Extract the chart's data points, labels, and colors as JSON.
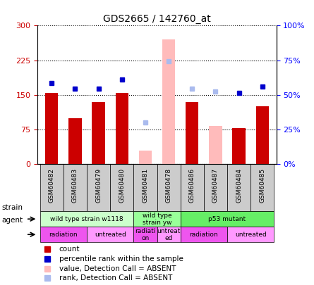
{
  "title": "GDS2665 / 142760_at",
  "samples": [
    "GSM60482",
    "GSM60483",
    "GSM60479",
    "GSM60480",
    "GSM60481",
    "GSM60478",
    "GSM60486",
    "GSM60487",
    "GSM60484",
    "GSM60485"
  ],
  "count_values": [
    155,
    100,
    135,
    155,
    null,
    null,
    135,
    null,
    78,
    125
  ],
  "rank_values": [
    175,
    163,
    163,
    183,
    null,
    null,
    null,
    null,
    155,
    168
  ],
  "absent_bar_values": [
    null,
    null,
    null,
    null,
    30,
    270,
    null,
    82,
    null,
    null
  ],
  "absent_rank_values": [
    null,
    null,
    null,
    null,
    90,
    223,
    163,
    158,
    null,
    null
  ],
  "ylim_left": [
    0,
    300
  ],
  "ylim_right": [
    0,
    100
  ],
  "yticks_left": [
    0,
    75,
    150,
    225,
    300
  ],
  "yticks_right": [
    0,
    25,
    50,
    75,
    100
  ],
  "ytick_labels_right": [
    "0%",
    "25%",
    "50%",
    "75%",
    "100%"
  ],
  "strain_groups": [
    {
      "label": "wild type strain w1118",
      "start": 0,
      "end": 4,
      "color": "#ccffcc"
    },
    {
      "label": "wild type\nstrain yw",
      "start": 4,
      "end": 6,
      "color": "#99ff99"
    },
    {
      "label": "p53 mutant",
      "start": 6,
      "end": 10,
      "color": "#66ee66"
    }
  ],
  "agent_groups": [
    {
      "label": "radiation",
      "start": 0,
      "end": 2,
      "color": "#ee55ee"
    },
    {
      "label": "untreated",
      "start": 2,
      "end": 4,
      "color": "#ff99ff"
    },
    {
      "label": "radiati\non",
      "start": 4,
      "end": 5,
      "color": "#ee55ee"
    },
    {
      "label": "untreat\ned",
      "start": 5,
      "end": 6,
      "color": "#ff99ff"
    },
    {
      "label": "radiation",
      "start": 6,
      "end": 8,
      "color": "#ee55ee"
    },
    {
      "label": "untreated",
      "start": 8,
      "end": 10,
      "color": "#ff99ff"
    }
  ],
  "bar_width": 0.55,
  "absent_bar_color": "#ffbbbb",
  "absent_rank_color": "#aabbee",
  "rank_color": "#0000cc",
  "count_color": "#cc0000",
  "bg_color": "#ffffff",
  "plot_bg": "#ffffff",
  "tick_bg_color": "#cccccc"
}
